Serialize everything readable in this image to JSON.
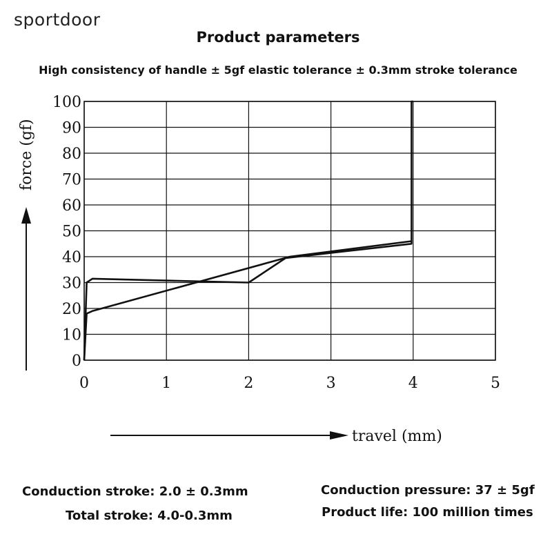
{
  "brand": "sportdoor",
  "title": "Product parameters",
  "subtitle": "High consistency of handle ± 5gf elastic tolerance ± 0.3mm stroke tolerance",
  "chart_data": {
    "type": "line",
    "xlabel": "travel (mm)",
    "ylabel": "force (gf)",
    "xlim": [
      0,
      5
    ],
    "ylim": [
      0,
      100
    ],
    "x_ticks": [
      0,
      1,
      2,
      3,
      4,
      5
    ],
    "y_ticks": [
      0,
      10,
      20,
      30,
      40,
      50,
      60,
      70,
      80,
      90,
      100
    ],
    "grid": true,
    "series": [
      {
        "x": [
          0,
          0.03,
          0.1,
          2.0,
          2.45,
          3.98,
          3.98,
          4.0
        ],
        "y": [
          0,
          30,
          31.5,
          30,
          39.5,
          45,
          100,
          100
        ]
      },
      {
        "x": [
          0,
          0.03,
          0.1,
          2.5,
          3.98
        ],
        "y": [
          0,
          18,
          19,
          40,
          46
        ]
      }
    ]
  },
  "specs": {
    "conduction_stroke": "Conduction stroke: 2.0 ± 0.3mm",
    "total_stroke": "Total stroke: 4.0-0.3mm",
    "conduction_pressure": "Conduction pressure: 37 ± 5gf",
    "product_life": "Product life: 100 million times"
  }
}
